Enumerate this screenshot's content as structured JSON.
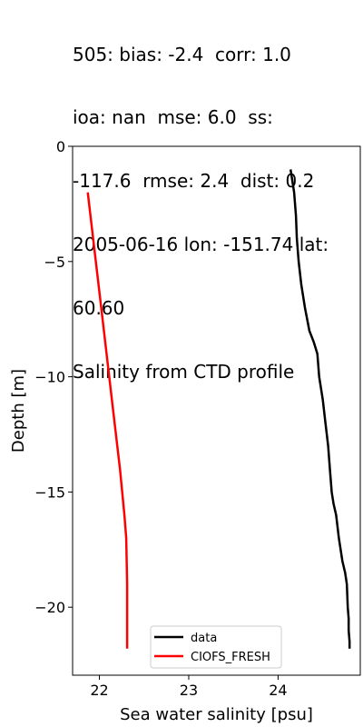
{
  "title_lines": [
    "505: bias: -2.4  corr: 1.0",
    "ioa: nan  mse: 6.0  ss:",
    "-117.6  rmse: 2.4  dist: 0.2",
    "2005-06-16 lon: -151.74 lat:",
    "60.60",
    "Salinity from CTD profile"
  ],
  "chart_data": {
    "type": "line",
    "title": "505: bias: -2.4  corr: 1.0  ioa: nan  mse: 6.0  ss: -117.6  rmse: 2.4  dist: 0.2  2005-06-16 lon: -151.74 lat: 60.60  Salinity from CTD profile",
    "xlabel": "Sea water salinity [psu]",
    "ylabel": "Depth [m]",
    "xlim": [
      21.7,
      24.92
    ],
    "ylim": [
      -22.95,
      0
    ],
    "xticks": [
      22,
      23,
      24
    ],
    "xtick_labels": [
      "22",
      "23",
      "24"
    ],
    "yticks": [
      0,
      -5,
      -10,
      -15,
      -20
    ],
    "ytick_labels": [
      "0",
      "−5",
      "−10",
      "−15",
      "−20"
    ],
    "grid": false,
    "legend_placement": "lower-center",
    "series": [
      {
        "name": "data",
        "color": "#000000",
        "x": [
          24.14,
          24.18,
          24.2,
          24.21,
          24.23,
          24.26,
          24.3,
          24.35,
          24.4,
          24.44,
          24.46,
          24.5,
          24.53,
          24.56,
          24.58,
          24.6,
          24.62,
          24.65,
          24.68,
          24.72,
          24.75,
          24.77,
          24.78,
          24.79,
          24.79,
          24.8,
          24.8
        ],
        "y": [
          -1.0,
          -2.0,
          -3.0,
          -4.0,
          -5.0,
          -6.0,
          -7.0,
          -8.0,
          -8.5,
          -9.0,
          -10.0,
          -11.0,
          -12.0,
          -13.0,
          -14.0,
          -15.0,
          -15.5,
          -16.0,
          -17.0,
          -18.0,
          -18.5,
          -19.0,
          -20.0,
          -20.5,
          -21.0,
          -21.5,
          -21.8
        ]
      },
      {
        "name": "CIOFS_FRESH",
        "color": "#ff0000",
        "x": [
          21.87,
          21.96,
          22.05,
          22.14,
          22.23,
          22.28,
          22.3,
          22.31,
          22.31,
          22.31
        ],
        "y": [
          -2.0,
          -5.0,
          -8.0,
          -11.0,
          -14.0,
          -16.0,
          -17.0,
          -19.0,
          -20.0,
          -21.8
        ]
      }
    ]
  }
}
